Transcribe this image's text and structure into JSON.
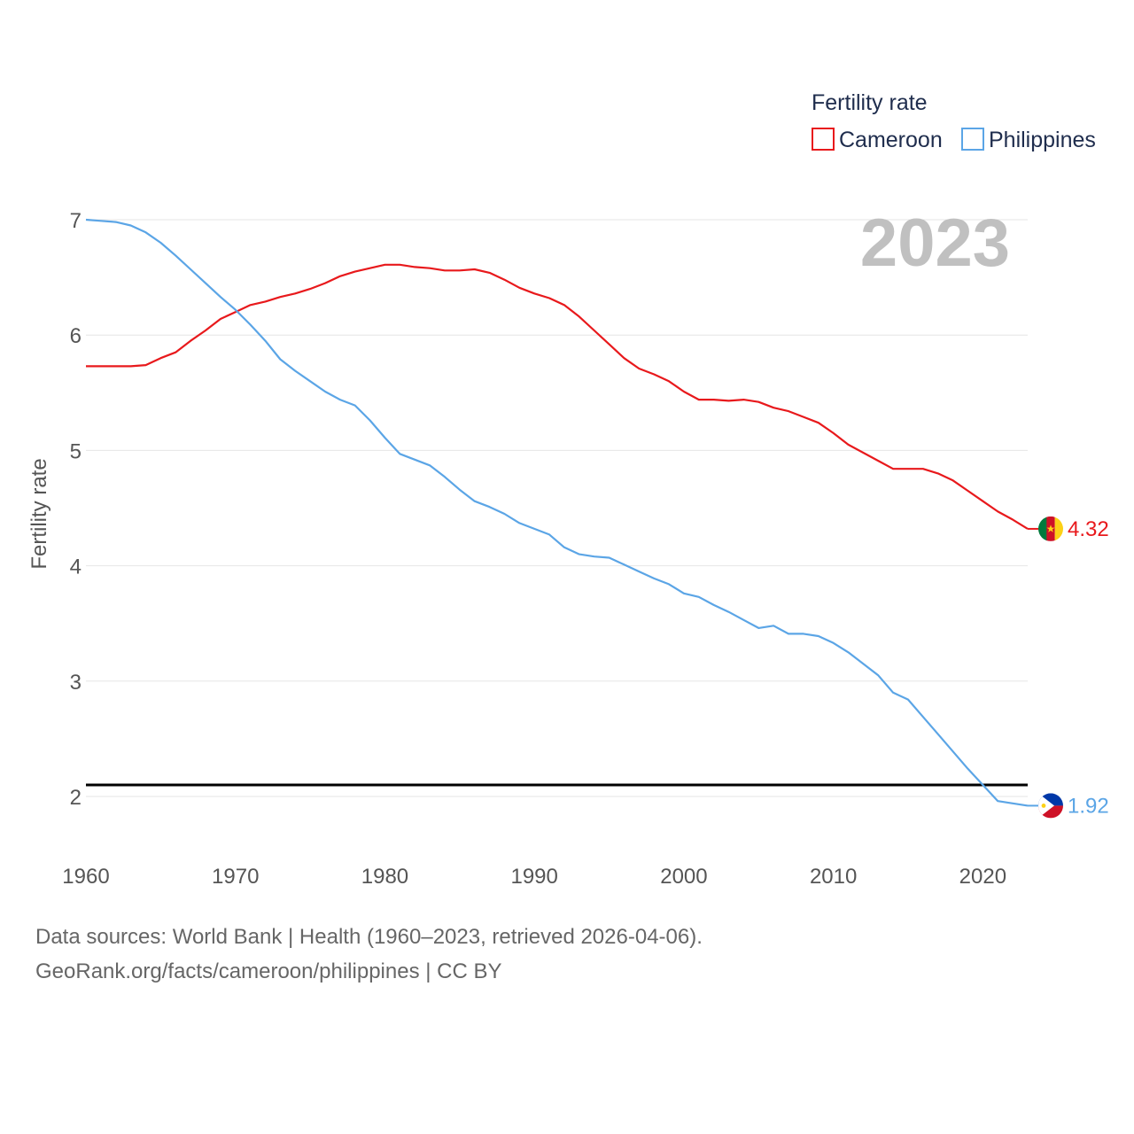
{
  "chart_data": {
    "type": "line",
    "legend_title": "Fertility rate",
    "ylabel": "Fertility rate",
    "year_label": "2023",
    "xlim": [
      1960,
      2023
    ],
    "ylim": [
      1.6,
      7.0
    ],
    "yticks": [
      2,
      3,
      4,
      5,
      6,
      7
    ],
    "xticks": [
      1960,
      1970,
      1980,
      1990,
      2000,
      2010,
      2020
    ],
    "reference_line": 2.1,
    "x": [
      1960,
      1961,
      1962,
      1963,
      1964,
      1965,
      1966,
      1967,
      1968,
      1969,
      1970,
      1971,
      1972,
      1973,
      1974,
      1975,
      1976,
      1977,
      1978,
      1979,
      1980,
      1981,
      1982,
      1983,
      1984,
      1985,
      1986,
      1987,
      1988,
      1989,
      1990,
      1991,
      1992,
      1993,
      1994,
      1995,
      1996,
      1997,
      1998,
      1999,
      2000,
      2001,
      2002,
      2003,
      2004,
      2005,
      2006,
      2007,
      2008,
      2009,
      2010,
      2011,
      2012,
      2013,
      2014,
      2015,
      2016,
      2017,
      2018,
      2019,
      2020,
      2021,
      2022,
      2023
    ],
    "series": [
      {
        "name": "Cameroon",
        "color": "#e8191c",
        "end_label": "4.32",
        "values": [
          5.73,
          5.73,
          5.73,
          5.73,
          5.74,
          5.8,
          5.85,
          5.95,
          6.04,
          6.14,
          6.2,
          6.26,
          6.29,
          6.33,
          6.36,
          6.4,
          6.45,
          6.51,
          6.55,
          6.58,
          6.61,
          6.61,
          6.59,
          6.58,
          6.56,
          6.56,
          6.57,
          6.54,
          6.48,
          6.41,
          6.36,
          6.32,
          6.26,
          6.16,
          6.04,
          5.92,
          5.8,
          5.71,
          5.66,
          5.6,
          5.51,
          5.44,
          5.44,
          5.43,
          5.44,
          5.42,
          5.37,
          5.34,
          5.29,
          5.24,
          5.15,
          5.05,
          4.98,
          4.91,
          4.84,
          4.84,
          4.84,
          4.8,
          4.74,
          4.65,
          4.56,
          4.47,
          4.4,
          4.32
        ]
      },
      {
        "name": "Philippines",
        "color": "#5ba5e6",
        "end_label": "1.92",
        "values": [
          7.0,
          6.99,
          6.98,
          6.95,
          6.89,
          6.8,
          6.69,
          6.57,
          6.45,
          6.33,
          6.22,
          6.09,
          5.95,
          5.79,
          5.69,
          5.6,
          5.51,
          5.44,
          5.39,
          5.26,
          5.11,
          4.97,
          4.92,
          4.87,
          4.77,
          4.66,
          4.56,
          4.51,
          4.45,
          4.37,
          4.32,
          4.27,
          4.16,
          4.1,
          4.08,
          4.07,
          4.01,
          3.95,
          3.89,
          3.84,
          3.76,
          3.73,
          3.66,
          3.6,
          3.53,
          3.46,
          3.48,
          3.41,
          3.41,
          3.39,
          3.33,
          3.25,
          3.15,
          3.05,
          2.9,
          2.84,
          2.69,
          2.54,
          2.39,
          2.24,
          2.1,
          1.96,
          1.94,
          1.92
        ]
      }
    ]
  },
  "footer": {
    "line1": "Data sources: World Bank | Health (1960–2023, retrieved 2026-04-06).",
    "line2": "GeoRank.org/facts/cameroon/philippines | CC BY"
  }
}
